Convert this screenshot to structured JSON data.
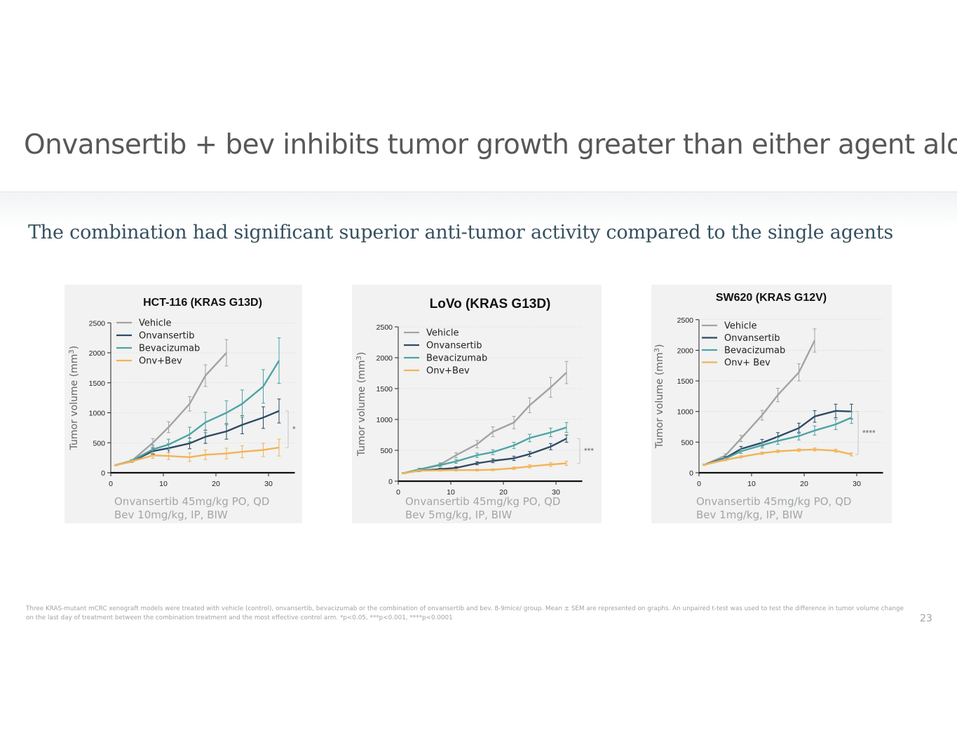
{
  "slide": {
    "title": "Onvansertib + bev inhibits tumor growth greater than either agent alone",
    "subtitle": "The combination had significant superior anti-tumor activity compared to the single agents",
    "footnote": "Three KRAS-mutant mCRC  xenograft models were treated with vehicle (control), onvansertib, bevacizumab or the combination of onvansertib and bev.  8-9mice/ group. Mean ± SEM are represented on graphs. An unpaired t-test was used to test the difference in tumor volume change on the last day of treatment between the combination treatment and the most effective control arm. *p<0.05, ***p<0.001, ****p<0.0001",
    "page_number": "23"
  },
  "colors": {
    "Vehicle": "#a3a3a3",
    "Onvansertib": "#2e4a67",
    "Bevacizumab": "#4ea3a6",
    "Onv+Bev": "#f3b357"
  },
  "chart_data": [
    {
      "type": "line",
      "title": "HCT-116 (KRAS G13D)",
      "ylabel": "Tumor volume (mm3)",
      "xlabel": "",
      "xlim": [
        0,
        35
      ],
      "ylim": [
        0,
        2500
      ],
      "xticks": [
        0,
        10,
        20,
        30
      ],
      "yticks": [
        0,
        500,
        1000,
        1500,
        2000,
        2500
      ],
      "legend": [
        "Vehicle",
        "Onvansertib",
        "Bevacizumab",
        "Onv+Bev"
      ],
      "series": [
        {
          "name": "Vehicle",
          "x": [
            1,
            4,
            8,
            11,
            15,
            18,
            22
          ],
          "y": [
            130,
            200,
            500,
            760,
            1150,
            1620,
            2000
          ],
          "err": [
            10,
            20,
            70,
            90,
            120,
            180,
            220
          ]
        },
        {
          "name": "Onvansertib",
          "x": [
            1,
            4,
            8,
            11,
            15,
            18,
            22,
            25,
            29,
            32
          ],
          "y": [
            130,
            190,
            360,
            410,
            490,
            600,
            690,
            800,
            920,
            1030
          ],
          "err": [
            10,
            20,
            50,
            70,
            90,
            110,
            130,
            150,
            180,
            200
          ]
        },
        {
          "name": "Bevacizumab",
          "x": [
            1,
            4,
            8,
            11,
            15,
            18,
            22,
            25,
            29,
            32
          ],
          "y": [
            130,
            200,
            390,
            470,
            640,
            840,
            1000,
            1150,
            1440,
            1870
          ],
          "err": [
            10,
            20,
            70,
            90,
            120,
            170,
            200,
            230,
            280,
            380
          ]
        },
        {
          "name": "Onv+Bev",
          "x": [
            1,
            4,
            8,
            11,
            15,
            18,
            22,
            25,
            29,
            32
          ],
          "y": [
            130,
            190,
            290,
            280,
            260,
            300,
            320,
            350,
            380,
            420
          ],
          "err": [
            10,
            20,
            50,
            60,
            70,
            80,
            90,
            100,
            110,
            140
          ]
        }
      ],
      "significance": "*",
      "annotation": [
        "Onvansertib 45mg/kg PO, QD",
        "Bev 10mg/kg, IP, BIW"
      ]
    },
    {
      "type": "line",
      "title": "LoVo (KRAS G13D)",
      "ylabel": "Tumor volume (mm3)",
      "xlabel": "",
      "xlim": [
        0,
        35
      ],
      "ylim": [
        0,
        2500
      ],
      "xticks": [
        0,
        10,
        20,
        30
      ],
      "yticks": [
        0,
        500,
        1000,
        1500,
        2000,
        2500
      ],
      "legend": [
        "Vehicle",
        "Onvansertib",
        "Bevacizumab",
        "Onv+Bev"
      ],
      "series": [
        {
          "name": "Vehicle",
          "x": [
            1,
            4,
            8,
            11,
            15,
            18,
            22,
            25,
            29,
            32
          ],
          "y": [
            130,
            190,
            270,
            420,
            600,
            800,
            950,
            1230,
            1520,
            1760
          ],
          "err": [
            10,
            20,
            30,
            40,
            60,
            80,
            100,
            120,
            160,
            180
          ]
        },
        {
          "name": "Onvansertib",
          "x": [
            1,
            4,
            8,
            11,
            15,
            18,
            22,
            25,
            29,
            32
          ],
          "y": [
            130,
            170,
            195,
            215,
            290,
            330,
            370,
            440,
            560,
            690
          ],
          "err": [
            10,
            15,
            15,
            20,
            25,
            30,
            35,
            40,
            50,
            60
          ]
        },
        {
          "name": "Bevacizumab",
          "x": [
            1,
            4,
            8,
            11,
            15,
            18,
            22,
            25,
            29,
            32
          ],
          "y": [
            130,
            190,
            260,
            320,
            420,
            470,
            580,
            700,
            790,
            870
          ],
          "err": [
            10,
            20,
            25,
            30,
            35,
            40,
            50,
            60,
            70,
            80
          ]
        },
        {
          "name": "Onv+Bev",
          "x": [
            1,
            4,
            8,
            11,
            15,
            18,
            22,
            25,
            29,
            32
          ],
          "y": [
            130,
            170,
            175,
            180,
            180,
            185,
            210,
            240,
            270,
            290
          ],
          "err": [
            10,
            12,
            12,
            15,
            15,
            15,
            20,
            25,
            30,
            35
          ]
        }
      ],
      "significance": "***",
      "annotation": [
        "Onvansertib 45mg/kg PO, QD",
        "Bev 5mg/kg, IP, BIW"
      ]
    },
    {
      "type": "line",
      "title": "SW620 (KRAS G12V)",
      "ylabel": "Tumor volume (mm3)",
      "xlabel": "",
      "xlim": [
        0,
        35
      ],
      "ylim": [
        0,
        2500
      ],
      "xticks": [
        0,
        10,
        20,
        30
      ],
      "yticks": [
        0,
        500,
        1000,
        1500,
        2000,
        2500
      ],
      "legend": [
        "Vehicle",
        "Onvansertib",
        "Bevacizumab",
        "Onv+ Bev"
      ],
      "series": [
        {
          "name": "Vehicle",
          "x": [
            1,
            5,
            8,
            12,
            15,
            19,
            22
          ],
          "y": [
            130,
            280,
            560,
            940,
            1270,
            1640,
            2160
          ],
          "err": [
            10,
            30,
            50,
            80,
            110,
            140,
            190
          ]
        },
        {
          "name": "Onvansertib",
          "x": [
            1,
            5,
            8,
            12,
            15,
            19,
            22,
            26,
            29
          ],
          "y": [
            130,
            240,
            390,
            490,
            590,
            730,
            920,
            1010,
            1000
          ],
          "err": [
            10,
            25,
            40,
            55,
            65,
            80,
            95,
            110,
            120
          ]
        },
        {
          "name": "Bevacizumab",
          "x": [
            1,
            5,
            8,
            12,
            15,
            19,
            22,
            26,
            29
          ],
          "y": [
            130,
            230,
            350,
            450,
            520,
            600,
            690,
            790,
            900
          ],
          "err": [
            10,
            20,
            35,
            45,
            55,
            65,
            75,
            85,
            95
          ]
        },
        {
          "name": "Onv+Bev",
          "x": [
            1,
            5,
            8,
            12,
            15,
            19,
            22,
            26,
            29
          ],
          "y": [
            130,
            210,
            260,
            320,
            350,
            370,
            380,
            360,
            300
          ],
          "err": [
            10,
            15,
            18,
            20,
            20,
            22,
            25,
            25,
            25
          ]
        }
      ],
      "significance": "****",
      "annotation": [
        "Onvansertib 45mg/kg PO, QD",
        "Bev 1mg/kg, IP, BIW"
      ]
    }
  ]
}
